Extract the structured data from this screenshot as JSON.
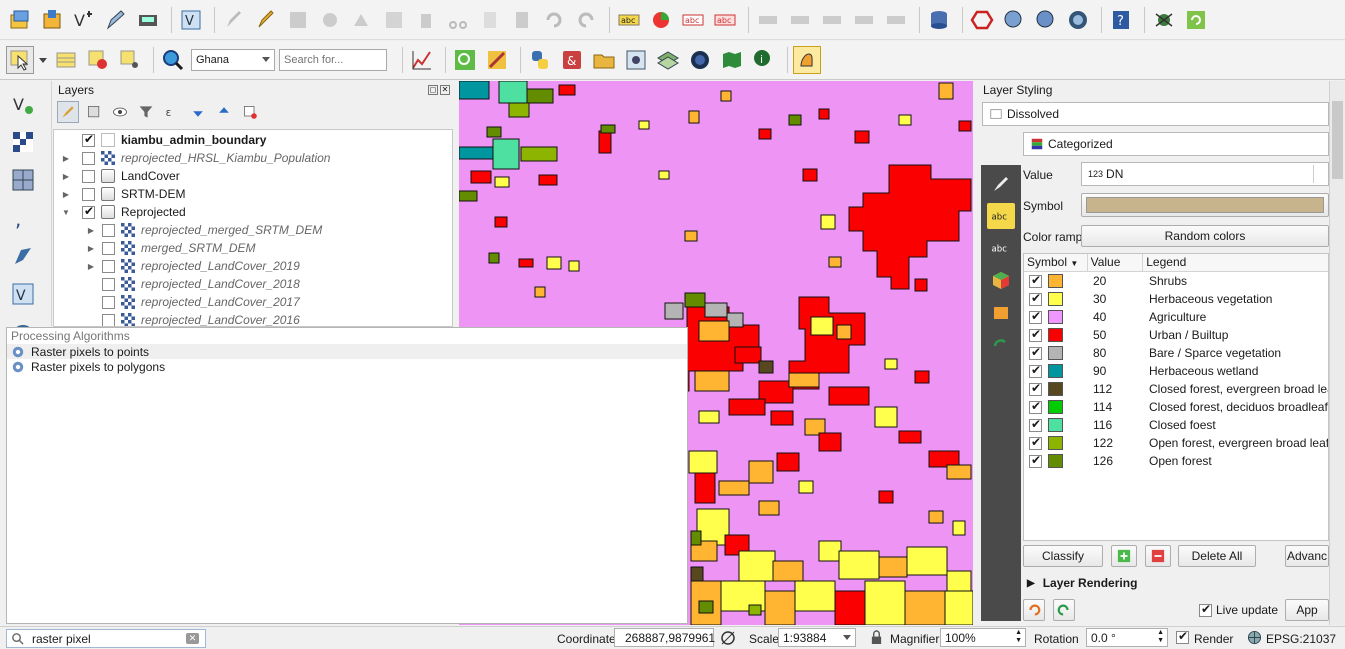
{
  "toolbar2": {
    "locator_combo": "Ghana",
    "search_placeholder": "Search for..."
  },
  "layers_panel": {
    "title": "Layers",
    "items": [
      {
        "label": "kiambu_admin_boundary",
        "checked": true
      },
      {
        "label": "reprojected_HRSL_Kiambu_Population",
        "checked": false
      },
      {
        "label": "LandCover",
        "checked": false
      },
      {
        "label": "SRTM-DEM",
        "checked": false
      },
      {
        "label": "Reprojected",
        "checked": true
      },
      {
        "label": "reprojected_merged_SRTM_DEM",
        "checked": false
      },
      {
        "label": "merged_SRTM_DEM",
        "checked": false
      },
      {
        "label": "reprojected_LandCover_2019",
        "checked": false
      },
      {
        "label": "reprojected_LandCover_2018",
        "checked": false
      },
      {
        "label": "reprojected_LandCover_2017",
        "checked": false
      },
      {
        "label": "reprojected_LandCover_2016",
        "checked": false
      }
    ]
  },
  "processing": {
    "title": "Processing Algorithms",
    "items": [
      "Raster pixels to points",
      "Raster pixels to polygons"
    ]
  },
  "styling": {
    "title": "Layer Styling",
    "layer": "Dissolved",
    "renderer": "Categorized",
    "value_label": "Value",
    "value_field": "DN",
    "value_type": "123",
    "symbol_label": "Symbol",
    "symbol_color": "#c8b48c",
    "color_ramp_label": "Color ramp",
    "color_ramp": "Random colors",
    "table_headers": [
      "Symbol",
      "Value",
      "Legend"
    ],
    "classes": [
      {
        "value": "20",
        "legend": "Shrubs",
        "color": "#ffb432"
      },
      {
        "value": "30",
        "legend": "Herbaceous vegetation",
        "color": "#ffff4c"
      },
      {
        "value": "40",
        "legend": "Agriculture",
        "color": "#f096ff"
      },
      {
        "value": "50",
        "legend": "Urban / Builtup",
        "color": "#fa0000"
      },
      {
        "value": "80",
        "legend": "Bare / Sparce vegetation",
        "color": "#b4b4b4"
      },
      {
        "value": "90",
        "legend": "Herbaceous wetland",
        "color": "#0096a0"
      },
      {
        "value": "112",
        "legend": "Closed forest, evergreen broad leaf",
        "color": "#58481f"
      },
      {
        "value": "114",
        "legend": "Closed forest, deciduos broadleaf",
        "color": "#00cc00"
      },
      {
        "value": "116",
        "legend": "Closed foest",
        "color": "#4ee0a0"
      },
      {
        "value": "122",
        "legend": "Open forest, evergreen broad leaf",
        "color": "#8db400"
      },
      {
        "value": "126",
        "legend": "Open forest",
        "color": "#648c00"
      }
    ],
    "buttons": {
      "classify": "Classify",
      "delete_all": "Delete All",
      "advanced": "Advanc"
    },
    "layer_rendering": "Layer Rendering",
    "live_update": "Live update",
    "apply": "App"
  },
  "status": {
    "search_value": "raster pixel",
    "coordinate_label": "Coordinate",
    "coordinate": "268887,9879961",
    "scale_label": "Scale",
    "scale": "1:93884",
    "magnifier_label": "Magnifier",
    "magnifier": "100%",
    "rotation_label": "Rotation",
    "rotation": "0.0 °",
    "render_label": "Render",
    "crs": "EPSG:21037"
  }
}
